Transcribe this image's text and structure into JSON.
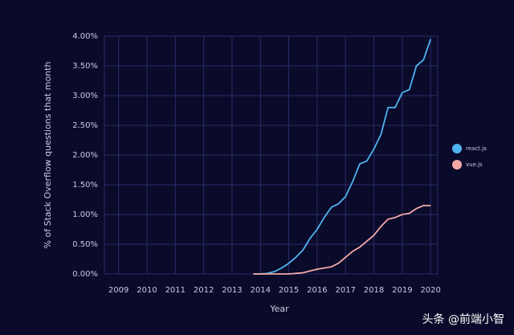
{
  "chart_data": {
    "type": "line",
    "x_label": "Year",
    "y_label": "% of Stack Overflow questions that month",
    "x": [
      2013.75,
      2014.0,
      2014.25,
      2014.5,
      2014.75,
      2015.0,
      2015.25,
      2015.5,
      2015.75,
      2016.0,
      2016.25,
      2016.5,
      2016.75,
      2017.0,
      2017.25,
      2017.5,
      2017.75,
      2018.0,
      2018.25,
      2018.5,
      2018.75,
      2019.0,
      2019.25,
      2019.5,
      2019.75,
      2020.0
    ],
    "series": [
      {
        "name": "react.js",
        "color": "#4fb3f0",
        "values": [
          0,
          0,
          0.01,
          0.04,
          0.1,
          0.18,
          0.28,
          0.4,
          0.6,
          0.75,
          0.95,
          1.12,
          1.18,
          1.3,
          1.55,
          1.85,
          1.9,
          2.1,
          2.35,
          2.8,
          2.8,
          3.05,
          3.1,
          3.5,
          3.6,
          3.95
        ]
      },
      {
        "name": "vue.js",
        "color": "#f2a9a6",
        "values": [
          0,
          0,
          0,
          0,
          0,
          0,
          0.01,
          0.02,
          0.05,
          0.08,
          0.1,
          0.12,
          0.18,
          0.28,
          0.38,
          0.45,
          0.55,
          0.65,
          0.8,
          0.92,
          0.95,
          1.0,
          1.02,
          1.1,
          1.15,
          1.15
        ]
      }
    ],
    "xlim": [
      2008.5,
      2020.25
    ],
    "xticks": [
      2009,
      2010,
      2011,
      2012,
      2013,
      2014,
      2015,
      2016,
      2017,
      2018,
      2019,
      2020
    ],
    "ylim": [
      0,
      4
    ],
    "yticks": [
      {
        "value": 0,
        "label": "0.00%"
      },
      {
        "value": 0.5,
        "label": "0.50%"
      },
      {
        "value": 1,
        "label": "1.00%"
      },
      {
        "value": 1.5,
        "label": "1.50%"
      },
      {
        "value": 2,
        "label": "2.00%"
      },
      {
        "value": 2.5,
        "label": "2.50%"
      },
      {
        "value": 3,
        "label": "3.00%"
      },
      {
        "value": 3.5,
        "label": "3.50%"
      },
      {
        "value": 4,
        "label": "4.00%"
      }
    ],
    "grid": true,
    "legend_position": "right",
    "watermark": "头条 @前端小智"
  }
}
